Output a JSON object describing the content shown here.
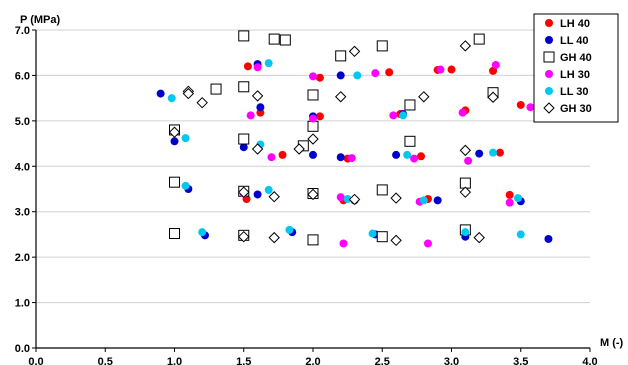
{
  "chart_data": {
    "type": "scatter",
    "ylabel": "P (MPa)",
    "xlabel": "M (-)",
    "xlim": [
      0.0,
      4.0
    ],
    "ylim": [
      0.0,
      7.0
    ],
    "x_ticks": [
      0.0,
      0.5,
      1.0,
      1.5,
      2.0,
      2.5,
      3.0,
      3.5,
      4.0
    ],
    "y_ticks": [
      0.0,
      1.0,
      2.0,
      3.0,
      4.0,
      5.0,
      6.0,
      7.0
    ],
    "x_tick_labels": [
      "0.0",
      "0.5",
      "1.0",
      "1.5",
      "2.0",
      "2.5",
      "3.0",
      "3.5",
      "4.0"
    ],
    "y_tick_labels": [
      "0.0",
      "1.0",
      "2.0",
      "3.0",
      "4.0",
      "5.0",
      "6.0",
      "7.0"
    ],
    "grid": "horizontal",
    "legend_position": "top-right",
    "series": [
      {
        "name": "LH 40",
        "marker": "filled-circle",
        "color": "#ff0000",
        "points": [
          [
            1.53,
            6.2
          ],
          [
            1.62,
            5.18
          ],
          [
            2.05,
            5.95
          ],
          [
            2.05,
            5.1
          ],
          [
            2.55,
            6.07
          ],
          [
            2.9,
            6.12
          ],
          [
            3.0,
            6.13
          ],
          [
            3.1,
            5.23
          ],
          [
            3.3,
            6.1
          ],
          [
            2.63,
            5.15
          ],
          [
            1.78,
            4.25
          ],
          [
            2.25,
            4.17
          ],
          [
            2.78,
            4.22
          ],
          [
            3.35,
            4.3
          ],
          [
            3.5,
            5.35
          ],
          [
            1.52,
            3.28
          ],
          [
            2.22,
            3.25
          ],
          [
            2.83,
            3.28
          ],
          [
            3.42,
            3.37
          ]
        ]
      },
      {
        "name": "LL 40",
        "marker": "filled-circle",
        "color": "#0000cc",
        "points": [
          [
            0.9,
            5.6
          ],
          [
            1.0,
            4.55
          ],
          [
            1.1,
            3.5
          ],
          [
            1.22,
            2.48
          ],
          [
            1.5,
            4.42
          ],
          [
            1.6,
            6.25
          ],
          [
            1.62,
            5.3
          ],
          [
            1.6,
            3.38
          ],
          [
            1.85,
            2.55
          ],
          [
            2.0,
            5.1
          ],
          [
            2.0,
            4.25
          ],
          [
            2.2,
            6.0
          ],
          [
            2.2,
            4.2
          ],
          [
            2.3,
            3.25
          ],
          [
            2.45,
            2.5
          ],
          [
            2.6,
            4.25
          ],
          [
            2.65,
            5.15
          ],
          [
            2.9,
            3.25
          ],
          [
            3.1,
            2.45
          ],
          [
            3.2,
            4.28
          ],
          [
            3.5,
            3.23
          ],
          [
            3.7,
            2.4
          ]
        ]
      },
      {
        "name": "GH 40",
        "marker": "hollow-square",
        "color": "#000000",
        "points": [
          [
            1.0,
            4.8
          ],
          [
            1.0,
            3.65
          ],
          [
            1.0,
            2.52
          ],
          [
            1.3,
            5.7
          ],
          [
            1.5,
            6.87
          ],
          [
            1.5,
            5.75
          ],
          [
            1.5,
            4.6
          ],
          [
            1.5,
            3.45
          ],
          [
            1.5,
            2.48
          ],
          [
            1.72,
            6.8
          ],
          [
            1.8,
            6.78
          ],
          [
            1.93,
            4.45
          ],
          [
            2.0,
            5.57
          ],
          [
            2.0,
            4.88
          ],
          [
            2.0,
            3.4
          ],
          [
            2.0,
            2.38
          ],
          [
            2.2,
            6.43
          ],
          [
            2.5,
            6.65
          ],
          [
            2.5,
            3.48
          ],
          [
            2.5,
            2.45
          ],
          [
            2.7,
            5.35
          ],
          [
            2.7,
            4.55
          ],
          [
            3.1,
            3.63
          ],
          [
            3.1,
            2.6
          ],
          [
            3.2,
            6.8
          ],
          [
            3.3,
            5.62
          ]
        ]
      },
      {
        "name": "LH 30",
        "marker": "filled-circle",
        "color": "#ff00ff",
        "points": [
          [
            1.6,
            6.18
          ],
          [
            1.55,
            5.12
          ],
          [
            1.7,
            4.2
          ],
          [
            1.5,
            3.4
          ],
          [
            2.0,
            5.98
          ],
          [
            2.0,
            5.05
          ],
          [
            2.2,
            3.32
          ],
          [
            2.22,
            2.3
          ],
          [
            2.28,
            4.18
          ],
          [
            2.45,
            6.05
          ],
          [
            2.58,
            5.12
          ],
          [
            2.73,
            4.17
          ],
          [
            2.77,
            3.22
          ],
          [
            2.92,
            6.13
          ],
          [
            2.83,
            2.3
          ],
          [
            3.08,
            5.18
          ],
          [
            3.12,
            4.12
          ],
          [
            3.32,
            6.23
          ],
          [
            3.42,
            3.2
          ],
          [
            3.57,
            5.3
          ]
        ]
      },
      {
        "name": "LL 30",
        "marker": "filled-circle",
        "color": "#00c8f0",
        "points": [
          [
            0.98,
            5.5
          ],
          [
            1.08,
            4.62
          ],
          [
            1.08,
            3.57
          ],
          [
            1.2,
            2.55
          ],
          [
            1.62,
            4.48
          ],
          [
            1.68,
            6.27
          ],
          [
            1.68,
            3.48
          ],
          [
            1.83,
            2.6
          ],
          [
            2.32,
            6.0
          ],
          [
            2.43,
            2.52
          ],
          [
            2.65,
            5.12
          ],
          [
            2.68,
            4.25
          ],
          [
            2.8,
            3.25
          ],
          [
            3.1,
            2.55
          ],
          [
            3.3,
            4.3
          ],
          [
            3.48,
            3.3
          ],
          [
            3.5,
            2.5
          ],
          [
            2.25,
            3.28
          ]
        ]
      },
      {
        "name": "GH 30",
        "marker": "hollow-diamond",
        "color": "#000000",
        "points": [
          [
            1.0,
            4.75
          ],
          [
            1.1,
            5.65
          ],
          [
            1.1,
            5.6
          ],
          [
            1.2,
            5.4
          ],
          [
            1.5,
            3.43
          ],
          [
            1.5,
            2.45
          ],
          [
            1.6,
            5.55
          ],
          [
            1.6,
            4.38
          ],
          [
            1.72,
            3.33
          ],
          [
            1.72,
            2.43
          ],
          [
            1.9,
            4.38
          ],
          [
            2.0,
            4.6
          ],
          [
            2.0,
            3.38
          ],
          [
            2.2,
            5.53
          ],
          [
            2.3,
            6.53
          ],
          [
            2.3,
            3.27
          ],
          [
            2.6,
            3.3
          ],
          [
            2.6,
            2.37
          ],
          [
            2.8,
            5.53
          ],
          [
            3.1,
            6.65
          ],
          [
            3.1,
            4.35
          ],
          [
            3.1,
            3.43
          ],
          [
            3.2,
            2.43
          ],
          [
            3.3,
            5.52
          ]
        ]
      }
    ]
  }
}
